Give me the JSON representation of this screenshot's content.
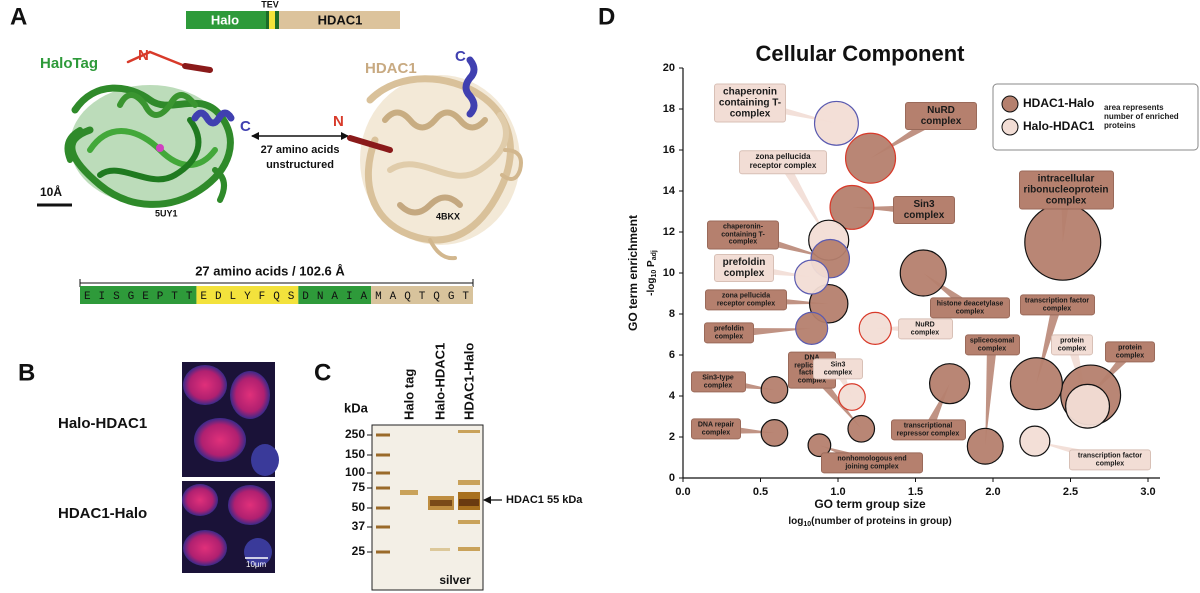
{
  "panel_a": {
    "label": "A",
    "domain_bar": {
      "halo": "Halo",
      "tev": "TEV",
      "hdac1": "HDAC1"
    },
    "halotag_label": "HaloTag",
    "n_left": "N",
    "c_left": "C",
    "hdac1_label": "HDAC1",
    "c_right": "C",
    "n_right": "N",
    "linker_line1": "27 amino acids",
    "linker_line2": "unstructured",
    "scale": "10Å",
    "pdb_left": "5UY1",
    "pdb_right": "4BKX",
    "sequence_title": "27 amino acids / 102.6 Å",
    "sequence": [
      {
        "text": "EISGEPTT",
        "color": "#2e9a3a"
      },
      {
        "text": "EDLYFQS",
        "color": "#f3e23c"
      },
      {
        "text": "DNAIA",
        "color": "#2e9a3a"
      },
      {
        "text": "MAQTQGT",
        "color": "#d8c39c"
      }
    ]
  },
  "panel_b": {
    "label": "B",
    "rows": [
      "Halo-HDAC1",
      "HDAC1-Halo"
    ],
    "scale": "10µm"
  },
  "panel_c": {
    "label": "C",
    "unit": "kDa",
    "markers": [
      250,
      150,
      100,
      75,
      50,
      37,
      25
    ],
    "lanes": [
      "Halo tag",
      "Halo-HDAC1",
      "HDAC1-Halo"
    ],
    "arrow_label": "HDAC1 55 kDa",
    "stain": "silver"
  },
  "chart_data": {
    "type": "bubble",
    "panel_label": "D",
    "title": "Cellular Component",
    "x_label": "GO term group size",
    "x_sublabel": [
      "log",
      "10",
      "(number of proteins in group)"
    ],
    "y_label": "GO term enrichment",
    "y_sublabel": [
      "-log",
      "10",
      " P",
      "adj"
    ],
    "xlim": [
      0,
      3
    ],
    "xticks": [
      {
        "value": 0,
        "label": "0.0"
      },
      0.5,
      {
        "value": 1,
        "label": "1.0"
      },
      1.5,
      {
        "value": 2,
        "label": "2.0"
      },
      2.5,
      {
        "value": 3,
        "label": "3.0"
      }
    ],
    "ylim": [
      0,
      20
    ],
    "yticks": [
      0,
      2,
      4,
      6,
      8,
      10,
      12,
      14,
      16,
      18,
      20
    ],
    "size_legend": "area represents number of enriched proteins",
    "series": [
      {
        "name": "HDAC1-Halo",
        "color": "#b5806e",
        "labels": [
          "NuRD complex",
          "Sin3 complex",
          "intracellular ribonucleoprotein complex",
          "chaperonin-containing T-complex",
          "histone deacetylase complex",
          "zona pellucida receptor complex",
          "prefoldin complex",
          "protein complex",
          "transcription factor complex",
          "transcriptional repressor complex",
          "Sin3-type complex",
          "DNA replication factor A complex",
          "DNA repair complex",
          "spliceosomal complex",
          "nonhomologous end joining complex"
        ],
        "x": [
          1.21,
          1.09,
          2.45,
          0.95,
          1.55,
          0.94,
          0.83,
          2.63,
          2.28,
          1.72,
          0.59,
          1.15,
          0.59,
          1.95,
          0.88
        ],
        "values": [
          15.6,
          13.2,
          11.5,
          10.7,
          10.0,
          8.5,
          7.3,
          4.05,
          4.6,
          4.6,
          4.3,
          2.4,
          2.2,
          1.55,
          1.6
        ],
        "sizes": [
          39,
          30,
          90,
          23,
          33,
          23,
          16,
          56,
          42,
          25,
          11,
          11,
          11,
          20,
          8
        ],
        "outline": [
          "#d83a2a",
          "#d83a2a",
          "#111111",
          "#5a5ab0",
          "#111111",
          "#111111",
          "#5a5ab0",
          "#111111",
          "#111111",
          "#111111",
          "#111111",
          "#111111",
          "#111111",
          "#111111",
          "#111111"
        ]
      },
      {
        "name": "Halo-HDAC1",
        "color": "#f2ddd5",
        "labels": [
          "chaperonin containing T-complex",
          "zona pellucida receptor complex",
          "prefoldin complex",
          "NuRD complex",
          "Sin3 complex",
          "transcription factor complex",
          "protein complex"
        ],
        "x": [
          0.99,
          0.94,
          0.83,
          1.24,
          1.09,
          2.27,
          2.61
        ],
        "values": [
          17.3,
          11.6,
          9.8,
          7.3,
          3.95,
          1.8,
          3.5
        ],
        "sizes": [
          30,
          25,
          18,
          16,
          11,
          14,
          30
        ],
        "outline": [
          "#5a5ab0",
          "#111111",
          "#5a5ab0",
          "#d83a2a",
          "#d83a2a",
          "#111111",
          "#111111"
        ]
      }
    ]
  }
}
